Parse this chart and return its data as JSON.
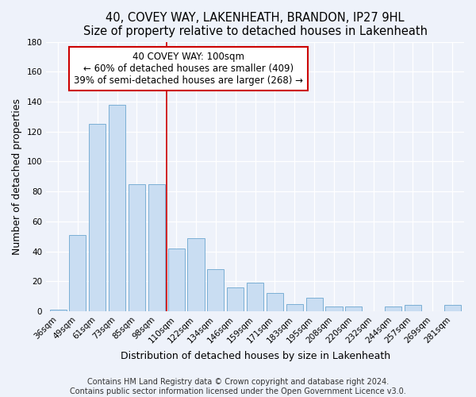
{
  "title": "40, COVEY WAY, LAKENHEATH, BRANDON, IP27 9HL",
  "subtitle": "Size of property relative to detached houses in Lakenheath",
  "xlabel": "Distribution of detached houses by size in Lakenheath",
  "ylabel": "Number of detached properties",
  "categories": [
    "36sqm",
    "49sqm",
    "61sqm",
    "73sqm",
    "85sqm",
    "98sqm",
    "110sqm",
    "122sqm",
    "134sqm",
    "146sqm",
    "159sqm",
    "171sqm",
    "183sqm",
    "195sqm",
    "208sqm",
    "220sqm",
    "232sqm",
    "244sqm",
    "257sqm",
    "269sqm",
    "281sqm"
  ],
  "values": [
    1,
    51,
    125,
    138,
    85,
    85,
    42,
    49,
    28,
    16,
    19,
    12,
    5,
    9,
    3,
    3,
    0,
    3,
    4,
    0,
    4
  ],
  "bar_color": "#c9ddf2",
  "bar_edge_color": "#7bafd4",
  "vline_index": 5.5,
  "vline_color": "#cc0000",
  "annotation_text": "40 COVEY WAY: 100sqm\n← 60% of detached houses are smaller (409)\n39% of semi-detached houses are larger (268) →",
  "annotation_box_color": "#ffffff",
  "annotation_box_edge": "#cc0000",
  "ylim": [
    0,
    180
  ],
  "yticks": [
    0,
    20,
    40,
    60,
    80,
    100,
    120,
    140,
    160,
    180
  ],
  "footer1": "Contains HM Land Registry data © Crown copyright and database right 2024.",
  "footer2": "Contains public sector information licensed under the Open Government Licence v3.0.",
  "title_fontsize": 10.5,
  "subtitle_fontsize": 9.5,
  "axis_label_fontsize": 9,
  "tick_fontsize": 7.5,
  "annotation_fontsize": 8.5,
  "footer_fontsize": 7,
  "background_color": "#eef2fa"
}
